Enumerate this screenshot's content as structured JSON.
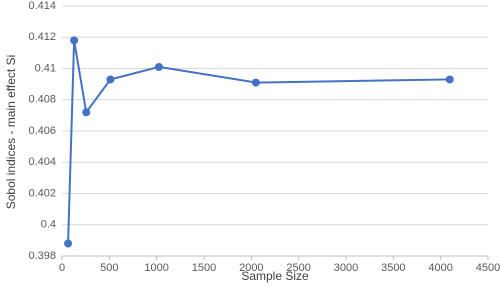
{
  "chart_data": {
    "type": "line",
    "x_label": "Sample Size",
    "y_label": "Sobol indices - main effect Si",
    "x": [
      64,
      128,
      256,
      512,
      1024,
      2048,
      4096
    ],
    "series": [
      {
        "name": "Si",
        "color": "#4472c4",
        "values": [
          0.3988,
          0.4118,
          0.4072,
          0.4093,
          0.4101,
          0.4091,
          0.4093
        ]
      }
    ],
    "xlim": [
      0,
      4500
    ],
    "xticks": [
      0,
      500,
      1000,
      1500,
      2000,
      2500,
      3000,
      3500,
      4000,
      4500
    ],
    "ylim": [
      0.398,
      0.414
    ],
    "yticks": [
      0.398,
      0.4,
      0.402,
      0.404,
      0.406,
      0.408,
      0.41,
      0.412,
      0.414
    ],
    "grid": true
  }
}
